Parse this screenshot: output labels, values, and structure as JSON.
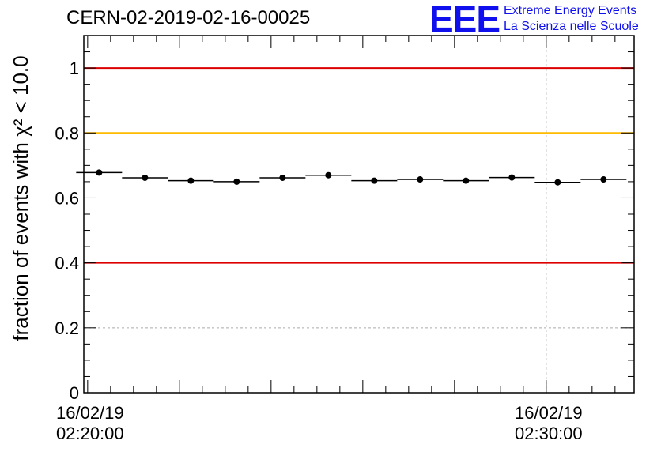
{
  "header": {
    "title": "CERN-02-2019-02-16-00025",
    "logo_text": "EEE",
    "logo_line1": "Extreme Energy Events",
    "logo_line2": "La Scienza nelle Scuole",
    "logo_color": "#1010ee"
  },
  "chart_data": {
    "type": "scatter",
    "title": "CERN-02-2019-02-16-00025",
    "ylabel": "fraction of events with χ² < 10.0",
    "xlabel": "",
    "ylim": [
      0,
      1.1
    ],
    "xlim": [
      "2019-02-16 02:19:55",
      "2019-02-16 02:31:55"
    ],
    "x_ticks": [
      {
        "time": "2019-02-16 02:20:00",
        "label_date": "16/02/19",
        "label_time": "02:20:00"
      },
      {
        "time": "2019-02-16 02:30:00",
        "label_date": "16/02/19",
        "label_time": "02:30:00"
      }
    ],
    "y_ticks": [
      "0",
      "0.2",
      "0.4",
      "0.6",
      "0.8",
      "1"
    ],
    "bin_width_seconds": 60,
    "points": [
      {
        "time": "2019-02-16 02:20:15",
        "value": 0.678
      },
      {
        "time": "2019-02-16 02:21:15",
        "value": 0.662
      },
      {
        "time": "2019-02-16 02:22:15",
        "value": 0.653
      },
      {
        "time": "2019-02-16 02:23:15",
        "value": 0.65
      },
      {
        "time": "2019-02-16 02:24:15",
        "value": 0.662
      },
      {
        "time": "2019-02-16 02:25:15",
        "value": 0.67
      },
      {
        "time": "2019-02-16 02:26:15",
        "value": 0.653
      },
      {
        "time": "2019-02-16 02:27:15",
        "value": 0.657
      },
      {
        "time": "2019-02-16 02:28:15",
        "value": 0.653
      },
      {
        "time": "2019-02-16 02:29:15",
        "value": 0.663
      },
      {
        "time": "2019-02-16 02:30:15",
        "value": 0.648
      },
      {
        "time": "2019-02-16 02:31:15",
        "value": 0.657
      }
    ],
    "reference_lines": [
      {
        "value": 1.0,
        "color": "#dd0000"
      },
      {
        "value": 0.8,
        "color": "#ffbb00"
      },
      {
        "value": 0.4,
        "color": "#dd0000"
      }
    ],
    "grid": {
      "horizontal": [
        0.2,
        0.6
      ],
      "vertical": [
        "2019-02-16 02:30:00"
      ],
      "style": "dotted"
    },
    "legend": "none",
    "marker_color": "#000000"
  }
}
